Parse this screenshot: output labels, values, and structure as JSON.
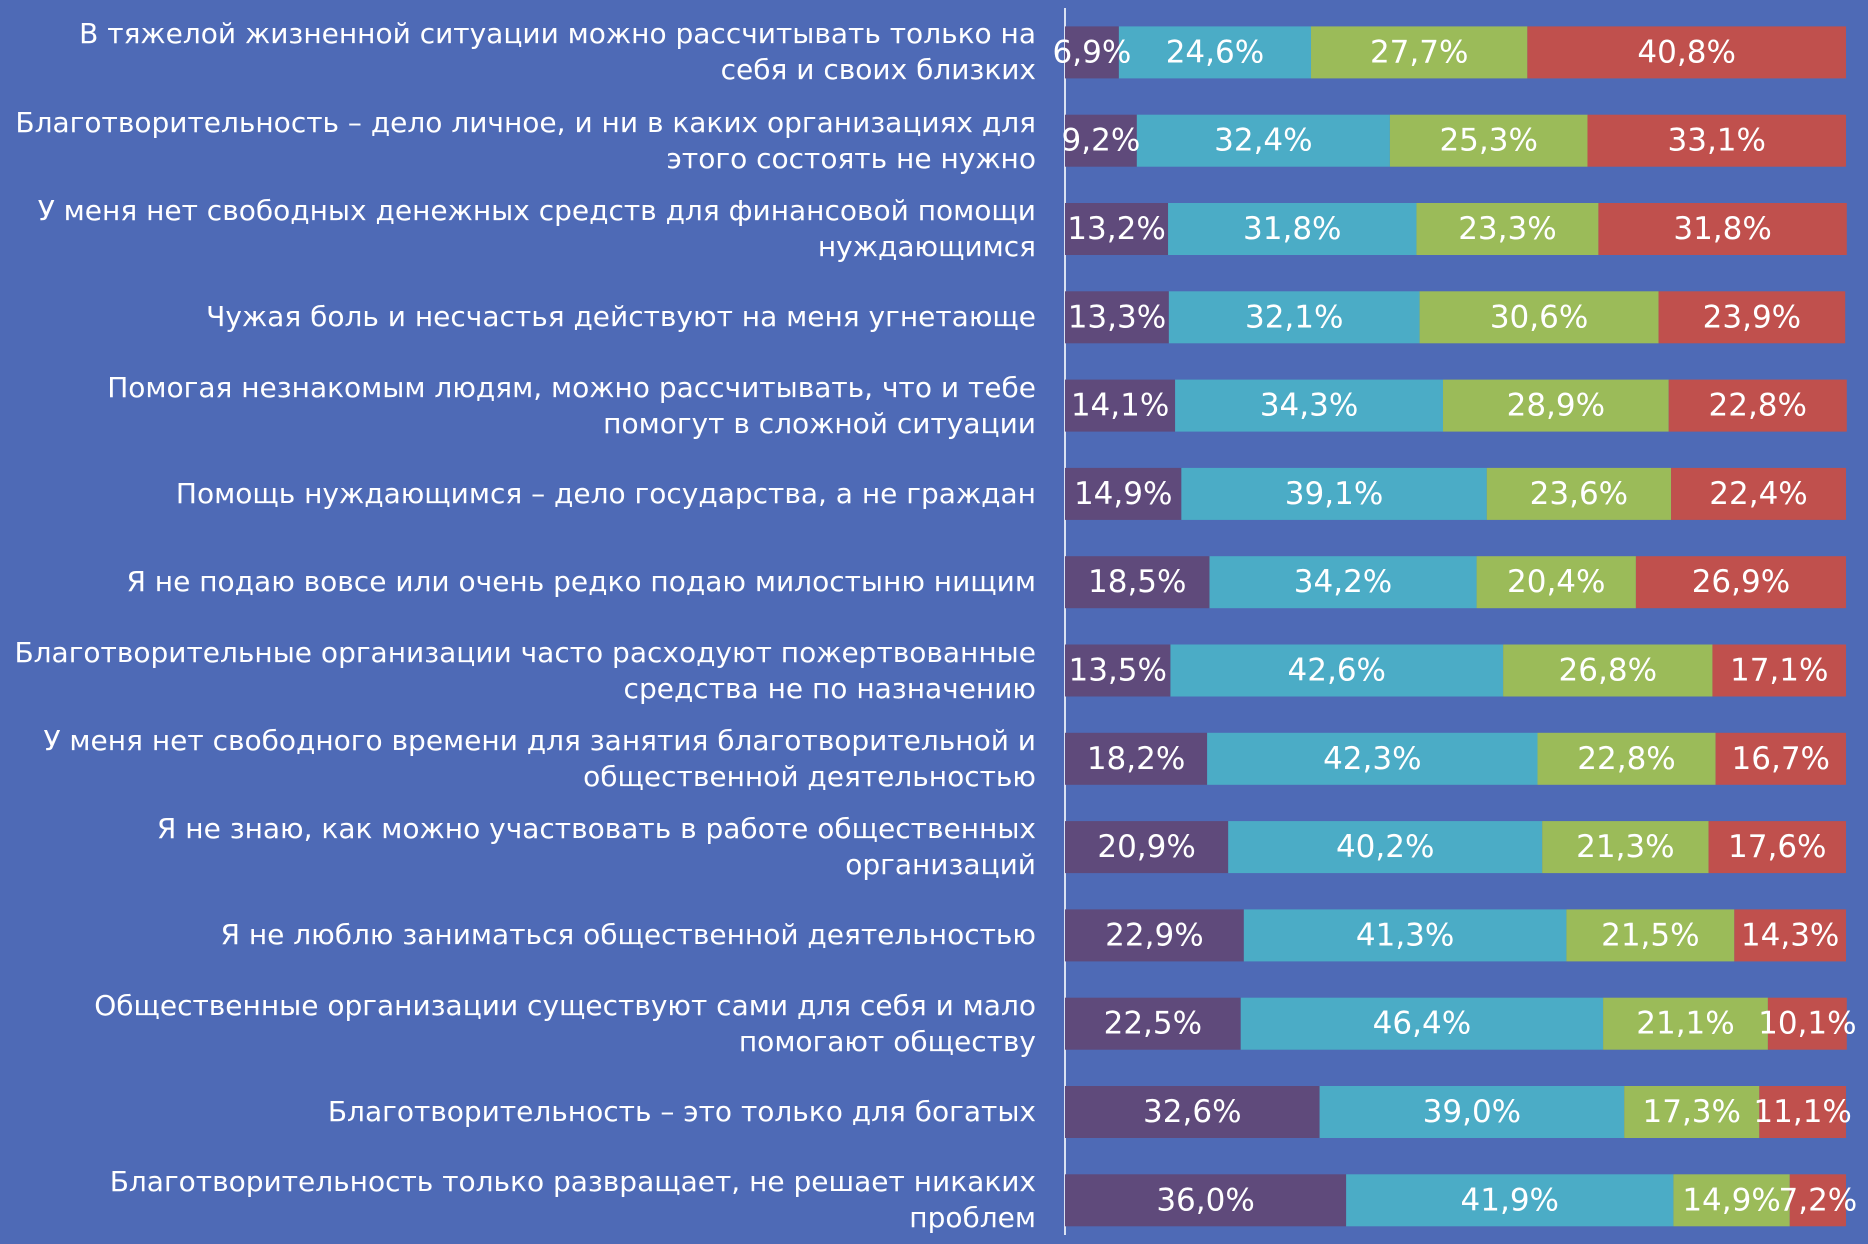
{
  "chart_data": {
    "type": "stacked-bar-horizontal",
    "categories": [
      "В тяжелой жизненной ситуации можно рассчитывать только на себя и своих близких",
      "Благотворительность – дело личное, и ни в каких организациях для этого состоять не нужно",
      "У меня нет свободных денежных средств для финансовой помощи нуждающимся",
      "Чужая боль и несчастья действуют на меня угнетающе",
      "Помогая незнакомым людям, можно рассчитывать, что и тебе помогут в сложной ситуации",
      "Помощь нуждающимся – дело государства, а не граждан",
      "Я не подаю вовсе или очень редко подаю милостыню нищим",
      "Благотворительные организации часто расходуют пожертвованные средства не по назначению",
      "У меня нет свободного времени для занятия благотворительной и общественной деятельностью",
      "Я не знаю, как можно участвовать в работе общественных организаций",
      "Я не люблю заниматься общественной деятельностью",
      "Общественные организации существуют сами для себя и мало помогают обществу",
      "Благотворительность – это только для богатых",
      "Благотворительность только развращает, не решает никаких проблем"
    ],
    "xlim": [
      0,
      100
    ],
    "series": [
      {
        "color": "#5f4a7b",
        "values": [
          6.9,
          9.2,
          13.2,
          13.3,
          14.1,
          14.9,
          18.5,
          13.5,
          18.2,
          20.9,
          22.9,
          22.5,
          32.6,
          36.0
        ],
        "value_labels": [
          "6,9%",
          "9,2%",
          "13,2%",
          "13,3%",
          "14,1%",
          "14,9%",
          "18,5%",
          "13,5%",
          "18,2%",
          "20,9%",
          "22,9%",
          "22,5%",
          "32,6%",
          "36,0%"
        ]
      },
      {
        "color": "#4bacc6",
        "values": [
          24.6,
          32.4,
          31.8,
          32.1,
          34.3,
          39.1,
          34.2,
          42.6,
          42.3,
          40.2,
          41.3,
          46.4,
          39.0,
          41.9
        ],
        "value_labels": [
          "24,6%",
          "32,4%",
          "31,8%",
          "32,1%",
          "34,3%",
          "39,1%",
          "34,2%",
          "42,6%",
          "42,3%",
          "40,2%",
          "41,3%",
          "46,4%",
          "39,0%",
          "41,9%"
        ]
      },
      {
        "color": "#9bbb59",
        "values": [
          27.7,
          25.3,
          23.3,
          30.6,
          28.9,
          23.6,
          20.4,
          26.8,
          22.8,
          21.3,
          21.5,
          21.1,
          17.3,
          14.9
        ],
        "value_labels": [
          "27,7%",
          "25,3%",
          "23,3%",
          "30,6%",
          "28,9%",
          "23,6%",
          "20,4%",
          "26,8%",
          "22,8%",
          "21,3%",
          "21,5%",
          "21,1%",
          "17,3%",
          "14,9%"
        ]
      },
      {
        "color": "#c0504d",
        "values": [
          40.8,
          33.1,
          31.8,
          23.9,
          22.8,
          22.4,
          26.9,
          17.1,
          16.7,
          17.6,
          14.3,
          10.1,
          11.1,
          7.2
        ],
        "value_labels": [
          "40,8%",
          "33,1%",
          "31,8%",
          "23,9%",
          "22,8%",
          "22,4%",
          "26,9%",
          "17,1%",
          "16,7%",
          "17,6%",
          "14,3%",
          "10,1%",
          "11,1%",
          "7,2%"
        ]
      }
    ]
  }
}
